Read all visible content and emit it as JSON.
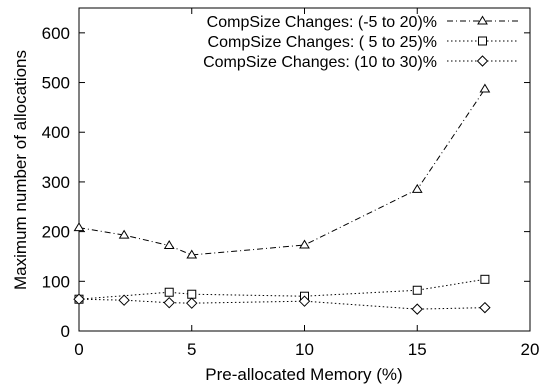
{
  "chart_data": {
    "type": "line",
    "title": "",
    "xlabel": "Pre-allocated Memory (%)",
    "ylabel": "Maximum number of allocations",
    "xlim": [
      0,
      20
    ],
    "ylim": [
      0,
      650
    ],
    "xticks": [
      0,
      5,
      10,
      15,
      20
    ],
    "yticks": [
      0,
      100,
      200,
      300,
      400,
      500,
      600
    ],
    "grid": false,
    "legend_position": "top-right",
    "series": [
      {
        "name": "CompSize Changes: (-5 to 20)%",
        "marker": "triangle",
        "dash": "dash-dot",
        "x": [
          0,
          2,
          4,
          5,
          10,
          15,
          18
        ],
        "y": [
          208,
          193,
          172,
          153,
          173,
          285,
          487
        ]
      },
      {
        "name": "CompSize Changes: ( 5 to 25)%",
        "marker": "square",
        "dash": "dotted",
        "x": [
          0,
          4,
          5,
          10,
          15,
          18
        ],
        "y": [
          64,
          78,
          74,
          70,
          82,
          104
        ]
      },
      {
        "name": "CompSize Changes: (10 to 30)%",
        "marker": "diamond",
        "dash": "dotted",
        "x": [
          0,
          2,
          4,
          5,
          10,
          15,
          18
        ],
        "y": [
          64,
          62,
          57,
          56,
          60,
          44,
          47
        ]
      }
    ]
  }
}
